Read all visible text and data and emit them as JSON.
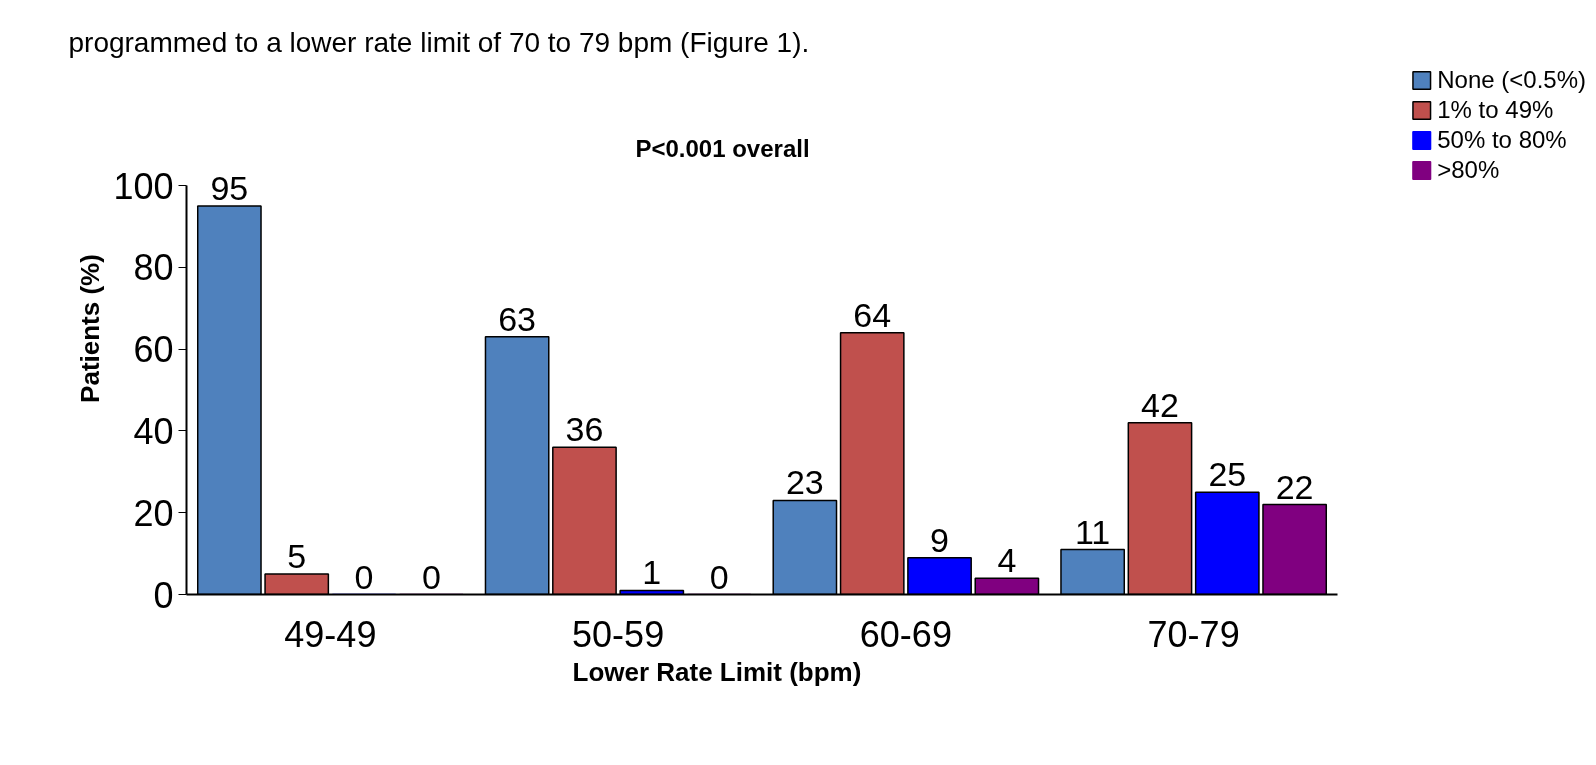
{
  "chart_data": {
    "type": "bar",
    "title": "P<0.001 overall",
    "xlabel": "Lower Rate Limit (bpm)",
    "ylabel": "Patients (%)",
    "categories": [
      "49-49",
      "50-59",
      "60-69",
      "70-79"
    ],
    "series": [
      {
        "name": "None (<0.5%)",
        "color": "#4f81bd",
        "values": [
          95,
          63,
          23,
          11
        ]
      },
      {
        "name": "1% to 49%",
        "color": "#c0504d",
        "values": [
          5,
          36,
          64,
          42
        ]
      },
      {
        "name": "50% to 80%",
        "color": "#0000ff",
        "values": [
          0,
          1,
          9,
          25
        ]
      },
      {
        "name": ">80%",
        "color": "#800080",
        "values": [
          0,
          0,
          4,
          22
        ]
      }
    ],
    "ylim": [
      0,
      100
    ],
    "yticks": [
      0,
      20,
      40,
      60,
      80,
      100
    ],
    "data_labels": true,
    "grid": false,
    "legend": "top right",
    "annotations": [
      "programmed to a lower rate limit of 70 to 79 bpm (Figure 1)."
    ]
  }
}
